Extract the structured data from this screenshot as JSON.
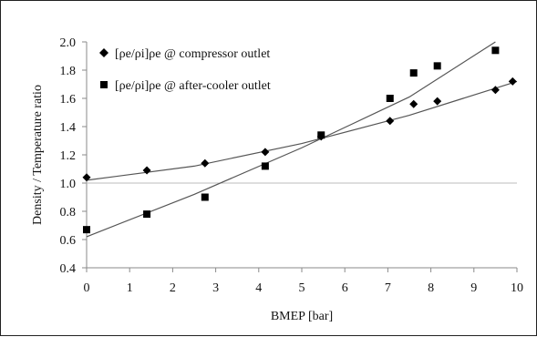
{
  "chart_data": {
    "type": "scatter",
    "xlabel": "BMEP [bar]",
    "ylabel": "Density / Temperature ratio",
    "xlim": [
      0,
      10
    ],
    "ylim": [
      0.4,
      2.0
    ],
    "x_ticks": [
      0,
      1,
      2,
      3,
      4,
      5,
      6,
      7,
      8,
      9,
      10
    ],
    "y_ticks": [
      0.4,
      0.6,
      0.8,
      1.0,
      1.2,
      1.4,
      1.6,
      1.8,
      2.0
    ],
    "reference_line_y": 1.0,
    "legend_position": "top-left",
    "series": [
      {
        "name": "[ρe/ρi]ρe @ compressor outlet",
        "marker": "diamond",
        "points": [
          {
            "x": 0.0,
            "y": 1.04
          },
          {
            "x": 1.4,
            "y": 1.09
          },
          {
            "x": 2.75,
            "y": 1.14
          },
          {
            "x": 4.15,
            "y": 1.22
          },
          {
            "x": 5.45,
            "y": 1.33
          },
          {
            "x": 7.05,
            "y": 1.44
          },
          {
            "x": 7.6,
            "y": 1.56
          },
          {
            "x": 8.15,
            "y": 1.58
          },
          {
            "x": 9.5,
            "y": 1.66
          },
          {
            "x": 9.9,
            "y": 1.72
          }
        ],
        "trendline": [
          {
            "x": 0.0,
            "y": 1.02
          },
          {
            "x": 2.5,
            "y": 1.12
          },
          {
            "x": 5.0,
            "y": 1.28
          },
          {
            "x": 7.5,
            "y": 1.48
          },
          {
            "x": 10.0,
            "y": 1.72
          }
        ]
      },
      {
        "name": "[ρe/ρi]ρe @ after-cooler outlet",
        "marker": "square",
        "points": [
          {
            "x": 0.0,
            "y": 0.67
          },
          {
            "x": 1.4,
            "y": 0.78
          },
          {
            "x": 2.75,
            "y": 0.9
          },
          {
            "x": 4.15,
            "y": 1.12
          },
          {
            "x": 5.45,
            "y": 1.34
          },
          {
            "x": 7.05,
            "y": 1.6
          },
          {
            "x": 7.6,
            "y": 1.78
          },
          {
            "x": 8.15,
            "y": 1.83
          },
          {
            "x": 9.5,
            "y": 1.94
          }
        ],
        "trendline": [
          {
            "x": 0.0,
            "y": 0.62
          },
          {
            "x": 2.5,
            "y": 0.92
          },
          {
            "x": 5.0,
            "y": 1.25
          },
          {
            "x": 7.5,
            "y": 1.61
          },
          {
            "x": 9.5,
            "y": 2.0
          }
        ]
      }
    ],
    "colors": {
      "markers": "#000000",
      "trendlines": "#555555",
      "axes": "#8a8a8a",
      "reference_line": "#bdbdbd",
      "text": "#111111"
    }
  }
}
